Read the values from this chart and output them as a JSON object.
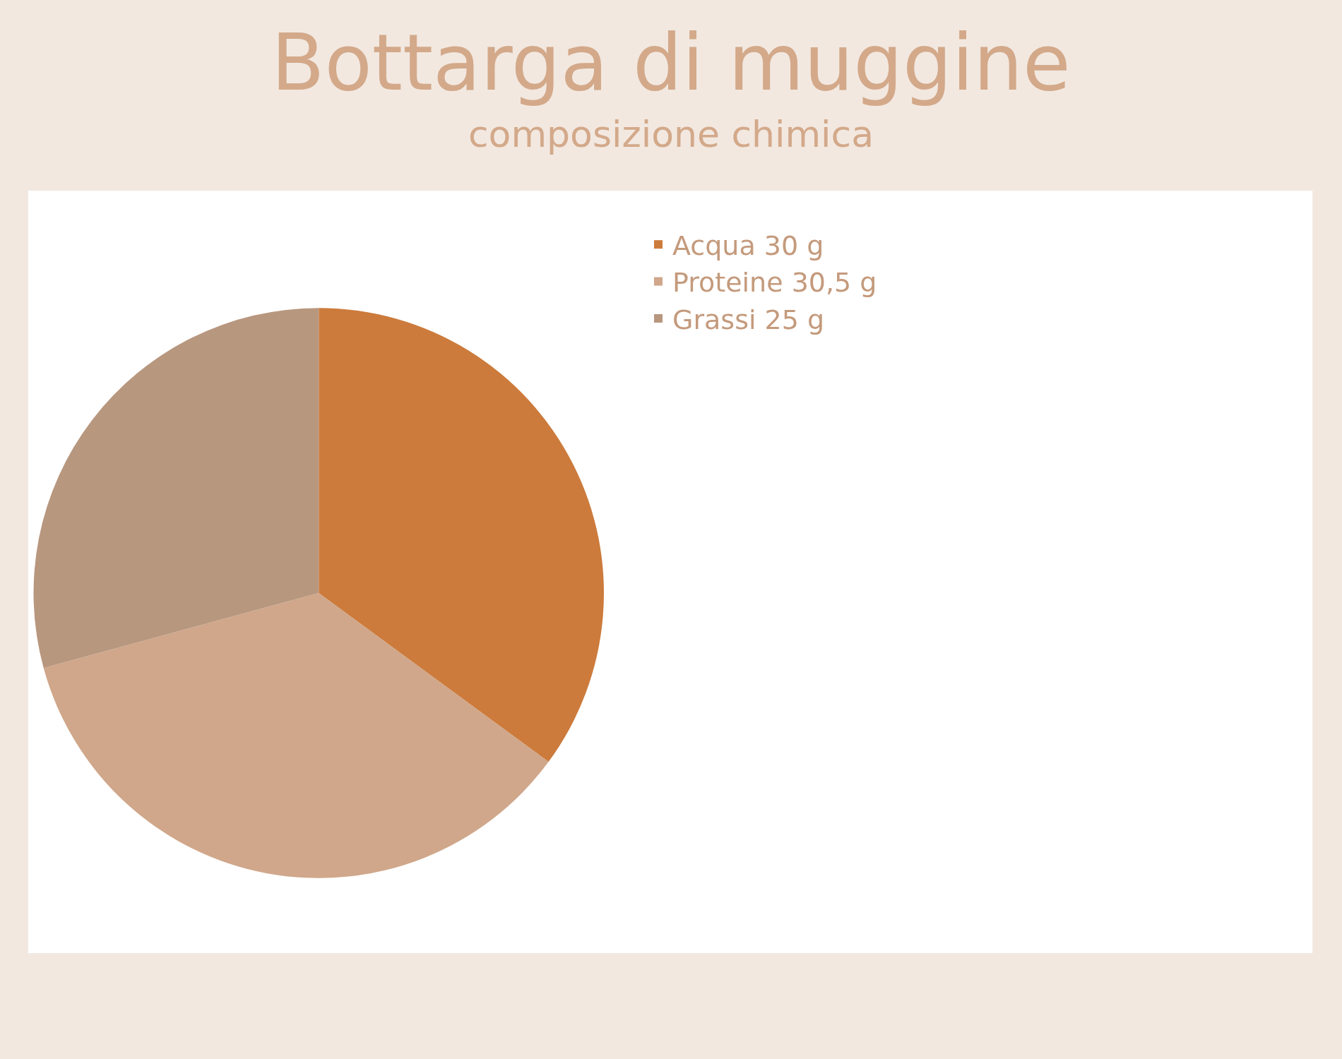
{
  "chart_data": {
    "type": "pie",
    "title": "Bottarga di muggine",
    "subtitle": "composizione chimica",
    "categories": [
      "Acqua 30 g",
      "Proteine 30,5 g",
      "Grassi 25 g"
    ],
    "values": [
      30,
      30.5,
      25
    ],
    "colors": [
      "#cc7b3c",
      "#d0a78a",
      "#b8977f"
    ],
    "legend": "top right"
  }
}
